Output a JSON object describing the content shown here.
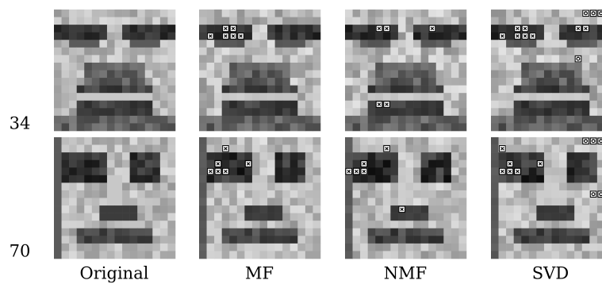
{
  "rows": [
    {
      "label": "34"
    },
    {
      "label": "70"
    }
  ],
  "columns": [
    "Original",
    "MF",
    "NMF",
    "SVD"
  ]
}
